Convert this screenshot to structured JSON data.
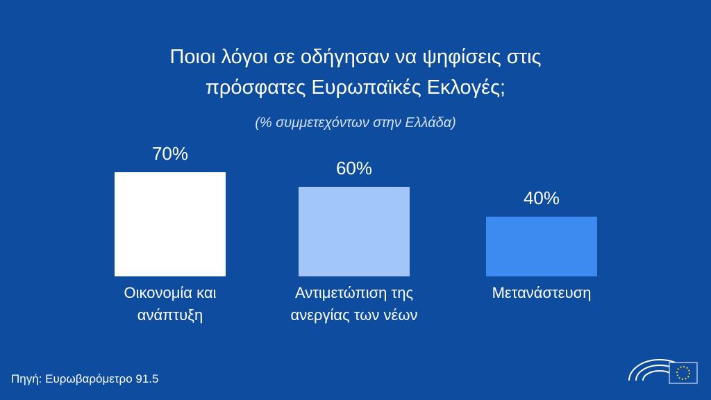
{
  "chart_data": {
    "type": "bar",
    "title": "Ποιοι λόγοι σε οδήγησαν να ψηφίσεις στις\nπρόσφατες Ευρωπαϊκές Εκλογές;",
    "subtitle": "(% συμμετεχόντων στην Ελλάδα)",
    "categories": [
      "Οικονομία και\nανάπτυξη",
      "Αντιμετώπιση της\nανεργίας των νέων",
      "Μετανάστευση"
    ],
    "values": [
      70,
      60,
      40
    ],
    "value_labels": [
      "70%",
      "60%",
      "40%"
    ],
    "colors": [
      "#ffffff",
      "#a3c6f8",
      "#3d8bf0"
    ],
    "source": "Πηγή: Ευρωβαρόμετρο 91.5"
  }
}
